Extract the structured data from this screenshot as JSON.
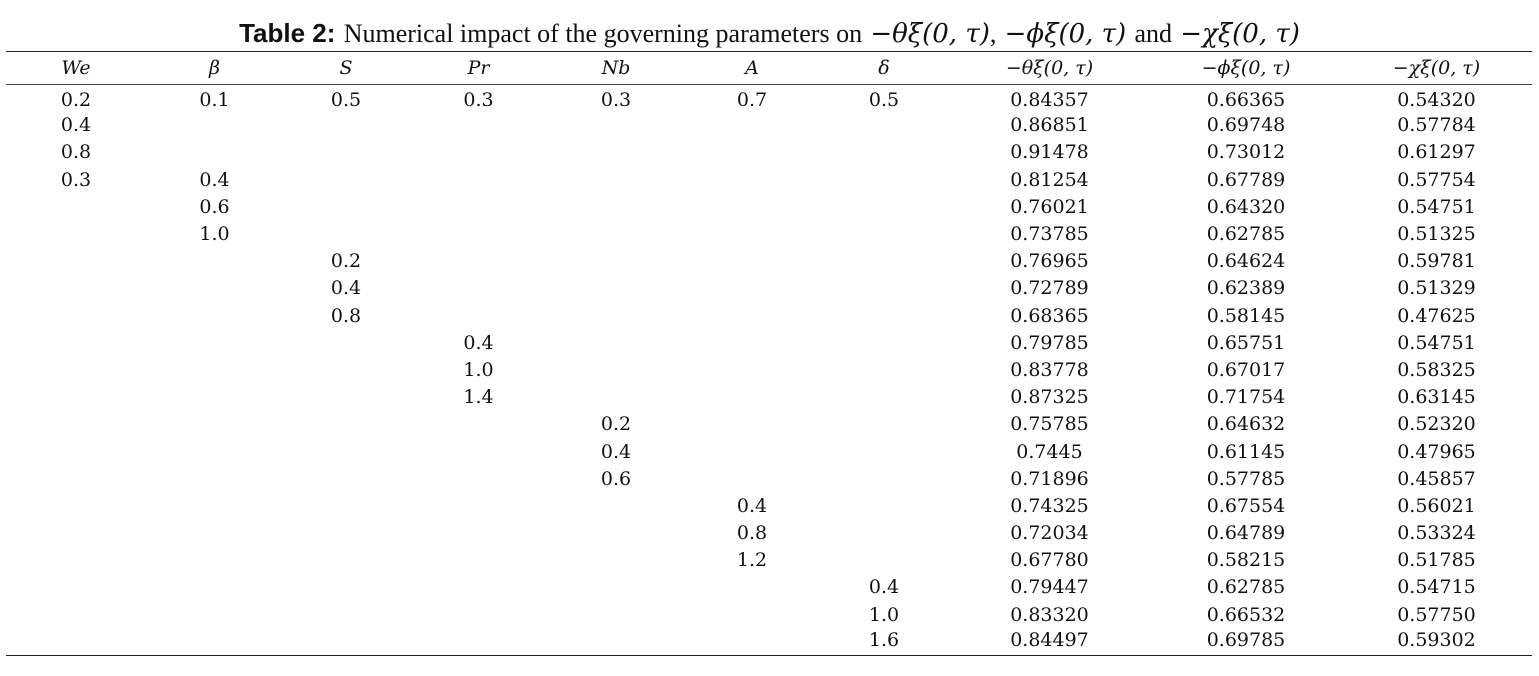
{
  "caption": {
    "label": "Table 2:",
    "text": "Numerical impact of the governing parameters on",
    "expr1": "−θξ(0, τ)",
    "sep": ",",
    "expr2": "−ϕξ(0, τ)",
    "and": "and",
    "expr3": "−χξ(0, τ)"
  },
  "table": {
    "headers": [
      "We",
      "β",
      "S",
      "Pr",
      "Nb",
      "A",
      "δ",
      "−θξ(0, τ)",
      "−ϕξ(0, τ)",
      "−χξ(0, τ)"
    ],
    "rows": [
      [
        "0.2",
        "0.1",
        "0.5",
        "0.3",
        "0.3",
        "0.7",
        "0.5",
        "0.84357",
        "0.66365",
        "0.54320"
      ],
      [
        "0.4",
        "",
        "",
        "",
        "",
        "",
        "",
        "0.86851",
        "0.69748",
        "0.57784"
      ],
      [
        "0.8",
        "",
        "",
        "",
        "",
        "",
        "",
        "0.91478",
        "0.73012",
        "0.61297"
      ],
      [
        "0.3",
        "0.4",
        "",
        "",
        "",
        "",
        "",
        "0.81254",
        "0.67789",
        "0.57754"
      ],
      [
        "",
        "0.6",
        "",
        "",
        "",
        "",
        "",
        "0.76021",
        "0.64320",
        "0.54751"
      ],
      [
        "",
        "1.0",
        "",
        "",
        "",
        "",
        "",
        "0.73785",
        "0.62785",
        "0.51325"
      ],
      [
        "",
        "",
        "0.2",
        "",
        "",
        "",
        "",
        "0.76965",
        "0.64624",
        "0.59781"
      ],
      [
        "",
        "",
        "0.4",
        "",
        "",
        "",
        "",
        "0.72789",
        "0.62389",
        "0.51329"
      ],
      [
        "",
        "",
        "0.8",
        "",
        "",
        "",
        "",
        "0.68365",
        "0.58145",
        "0.47625"
      ],
      [
        "",
        "",
        "",
        "0.4",
        "",
        "",
        "",
        "0.79785",
        "0.65751",
        "0.54751"
      ],
      [
        "",
        "",
        "",
        "1.0",
        "",
        "",
        "",
        "0.83778",
        "0.67017",
        "0.58325"
      ],
      [
        "",
        "",
        "",
        "1.4",
        "",
        "",
        "",
        "0.87325",
        "0.71754",
        "0.63145"
      ],
      [
        "",
        "",
        "",
        "",
        "0.2",
        "",
        "",
        "0.75785",
        "0.64632",
        "0.52320"
      ],
      [
        "",
        "",
        "",
        "",
        "0.4",
        "",
        "",
        "0.7445",
        "0.61145",
        "0.47965"
      ],
      [
        "",
        "",
        "",
        "",
        "0.6",
        "",
        "",
        "0.71896",
        "0.57785",
        "0.45857"
      ],
      [
        "",
        "",
        "",
        "",
        "",
        "0.4",
        "",
        "0.74325",
        "0.67554",
        "0.56021"
      ],
      [
        "",
        "",
        "",
        "",
        "",
        "0.8",
        "",
        "0.72034",
        "0.64789",
        "0.53324"
      ],
      [
        "",
        "",
        "",
        "",
        "",
        "1.2",
        "",
        "0.67780",
        "0.58215",
        "0.51785"
      ],
      [
        "",
        "",
        "",
        "",
        "",
        "",
        "0.4",
        "0.79447",
        "0.62785",
        "0.54715"
      ],
      [
        "",
        "",
        "",
        "",
        "",
        "",
        "1.0",
        "0.83320",
        "0.66532",
        "0.57750"
      ],
      [
        "",
        "",
        "",
        "",
        "",
        "",
        "1.6",
        "0.84497",
        "0.69785",
        "0.59302"
      ]
    ]
  }
}
